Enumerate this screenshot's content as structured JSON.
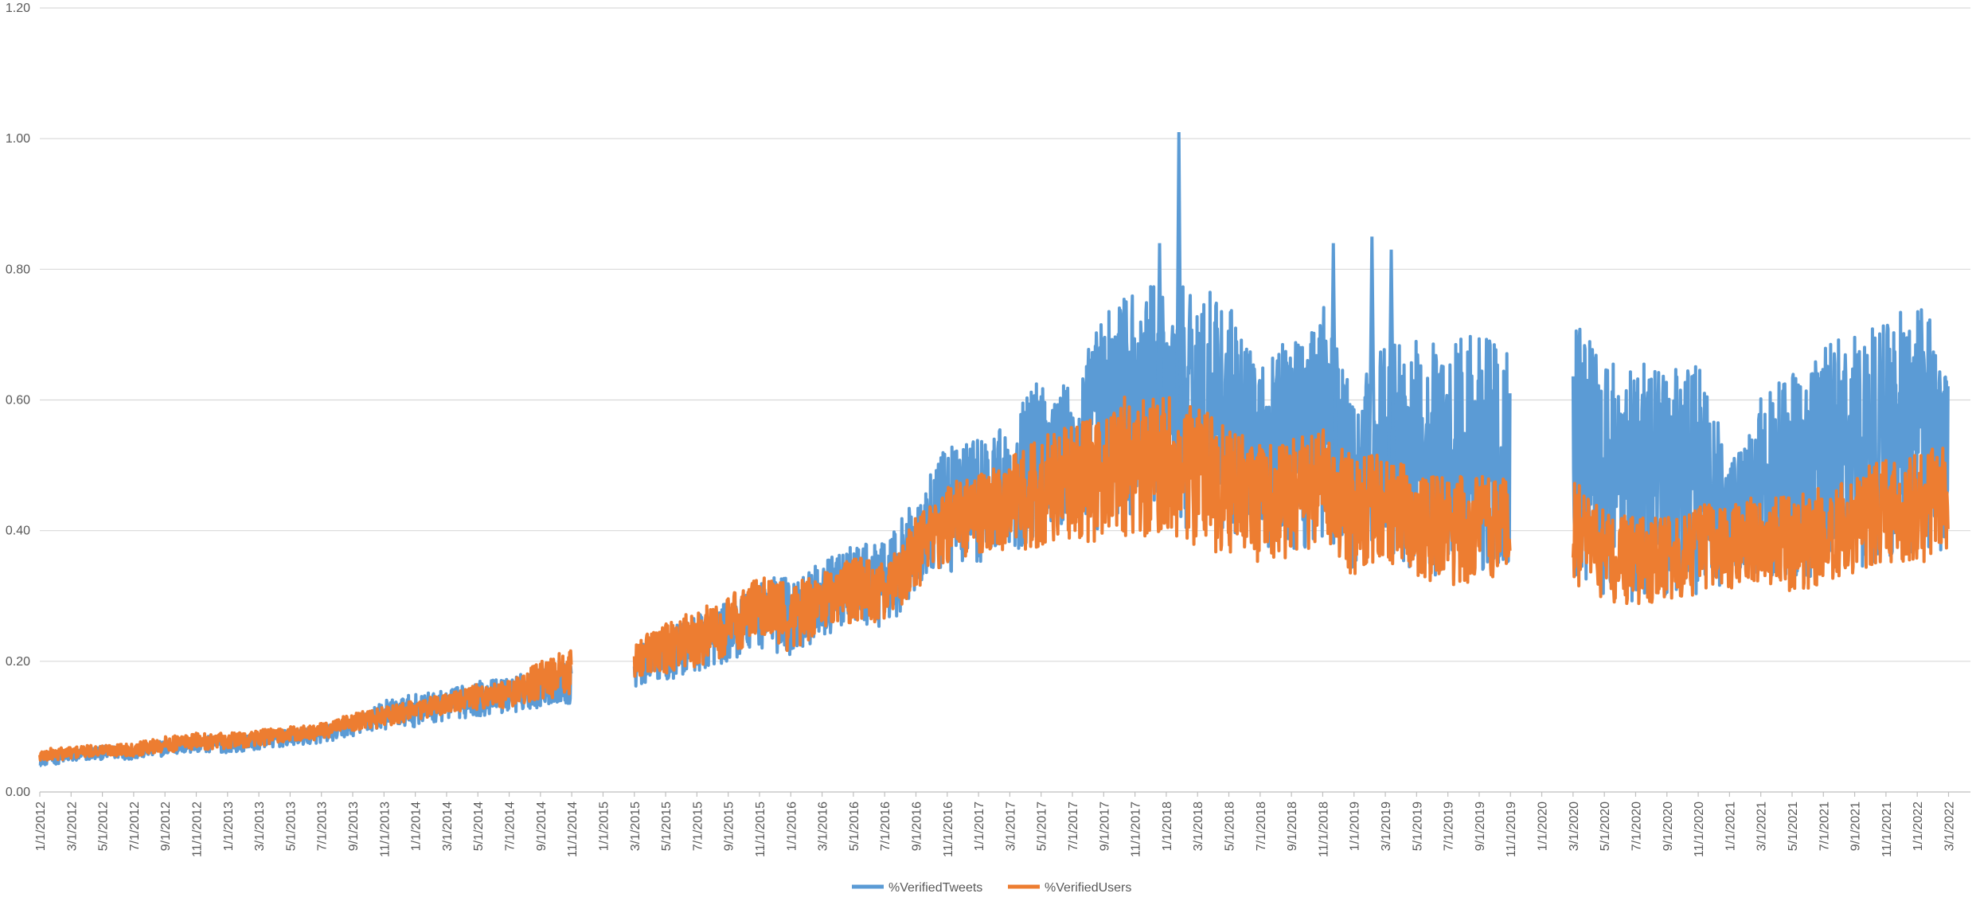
{
  "chart_data": {
    "type": "line",
    "title": "",
    "xlabel": "",
    "ylabel": "",
    "ylim": [
      0,
      1.2
    ],
    "y_ticks": [
      "0.00",
      "0.20",
      "0.40",
      "0.60",
      "0.80",
      "1.00",
      "1.20"
    ],
    "x_ticks": [
      "1/1/2012",
      "3/1/2012",
      "5/1/2012",
      "7/1/2012",
      "9/1/2012",
      "11/1/2012",
      "1/1/2013",
      "3/1/2013",
      "5/1/2013",
      "7/1/2013",
      "9/1/2013",
      "11/1/2013",
      "1/1/2014",
      "3/1/2014",
      "5/1/2014",
      "7/1/2014",
      "9/1/2014",
      "11/1/2014",
      "1/1/2015",
      "3/1/2015",
      "5/1/2015",
      "7/1/2015",
      "9/1/2015",
      "11/1/2015",
      "1/1/2016",
      "3/1/2016",
      "5/1/2016",
      "7/1/2016",
      "9/1/2016",
      "11/1/2016",
      "1/1/2017",
      "3/1/2017",
      "5/1/2017",
      "7/1/2017",
      "9/1/2017",
      "11/1/2017",
      "1/1/2018",
      "3/1/2018",
      "5/1/2018",
      "7/1/2018",
      "9/1/2018",
      "11/1/2018",
      "1/1/2019",
      "3/1/2019",
      "5/1/2019",
      "7/1/2019",
      "9/1/2019",
      "11/1/2019",
      "1/1/2020",
      "3/1/2020",
      "5/1/2020",
      "7/1/2020",
      "9/1/2020",
      "11/1/2020",
      "1/1/2021",
      "3/1/2021",
      "5/1/2021",
      "7/1/2021",
      "9/1/2021",
      "11/1/2021",
      "1/1/2022",
      "3/1/2022"
    ],
    "legend_position": "bottom",
    "grid": true,
    "series": [
      {
        "name": "%VerifiedTweets",
        "color": "#5b9bd5",
        "lower": [
          0.04,
          0.045,
          0.05,
          0.05,
          0.055,
          0.06,
          0.06,
          0.065,
          0.07,
          0.075,
          0.085,
          0.095,
          0.1,
          0.11,
          0.115,
          0.12,
          0.13,
          0.135,
          null,
          0.16,
          0.17,
          0.18,
          0.2,
          0.22,
          0.2,
          0.24,
          0.25,
          0.25,
          0.3,
          0.33,
          0.35,
          0.37,
          0.38,
          0.39,
          0.4,
          0.42,
          0.4,
          0.4,
          0.4,
          0.37,
          0.37,
          0.38,
          0.34,
          0.36,
          0.34,
          0.32,
          0.33,
          0.35,
          null,
          0.33,
          0.3,
          0.29,
          0.29,
          0.3,
          0.32,
          0.33,
          0.31,
          0.33,
          0.34,
          0.36,
          0.36,
          0.37
        ],
        "upper": [
          0.06,
          0.065,
          0.07,
          0.07,
          0.08,
          0.085,
          0.085,
          0.09,
          0.095,
          0.1,
          0.115,
          0.14,
          0.15,
          0.155,
          0.17,
          0.175,
          0.19,
          0.2,
          null,
          0.22,
          0.25,
          0.27,
          0.29,
          0.33,
          0.33,
          0.35,
          0.38,
          0.38,
          0.45,
          0.53,
          0.55,
          0.56,
          0.65,
          0.62,
          0.74,
          0.78,
          0.77,
          0.79,
          0.75,
          0.65,
          0.7,
          0.76,
          0.6,
          0.7,
          0.7,
          0.68,
          0.72,
          0.68,
          null,
          0.75,
          0.65,
          0.68,
          0.66,
          0.68,
          0.5,
          0.62,
          0.64,
          0.68,
          0.71,
          0.73,
          0.74,
          0.73
        ],
        "spikes": [
          [
            0.58,
            0.84
          ],
          [
            0.59,
            1.01
          ],
          [
            0.67,
            0.84
          ],
          [
            0.69,
            0.85
          ],
          [
            0.7,
            0.83
          ]
        ]
      },
      {
        "name": "%VerifiedUsers",
        "color": "#ed7d31",
        "lower": [
          0.045,
          0.05,
          0.055,
          0.055,
          0.06,
          0.065,
          0.065,
          0.07,
          0.075,
          0.08,
          0.09,
          0.1,
          0.11,
          0.12,
          0.125,
          0.13,
          0.14,
          0.14,
          null,
          0.17,
          0.18,
          0.19,
          0.21,
          0.23,
          0.21,
          0.25,
          0.26,
          0.26,
          0.31,
          0.34,
          0.36,
          0.37,
          0.37,
          0.38,
          0.38,
          0.39,
          0.38,
          0.37,
          0.36,
          0.35,
          0.36,
          0.37,
          0.33,
          0.35,
          0.33,
          0.31,
          0.32,
          0.34,
          null,
          0.32,
          0.29,
          0.28,
          0.29,
          0.3,
          0.31,
          0.32,
          0.3,
          0.32,
          0.33,
          0.35,
          0.35,
          0.36
        ],
        "upper": [
          0.065,
          0.07,
          0.072,
          0.075,
          0.085,
          0.09,
          0.09,
          0.095,
          0.1,
          0.105,
          0.12,
          0.13,
          0.14,
          0.15,
          0.165,
          0.17,
          0.2,
          0.22,
          null,
          0.23,
          0.26,
          0.28,
          0.3,
          0.33,
          0.32,
          0.34,
          0.36,
          0.35,
          0.42,
          0.47,
          0.49,
          0.51,
          0.55,
          0.56,
          0.58,
          0.62,
          0.61,
          0.59,
          0.56,
          0.53,
          0.54,
          0.56,
          0.51,
          0.52,
          0.49,
          0.48,
          0.49,
          0.48,
          null,
          0.48,
          0.43,
          0.42,
          0.42,
          0.44,
          0.44,
          0.46,
          0.45,
          0.47,
          0.49,
          0.51,
          0.52,
          0.53
        ]
      }
    ]
  }
}
